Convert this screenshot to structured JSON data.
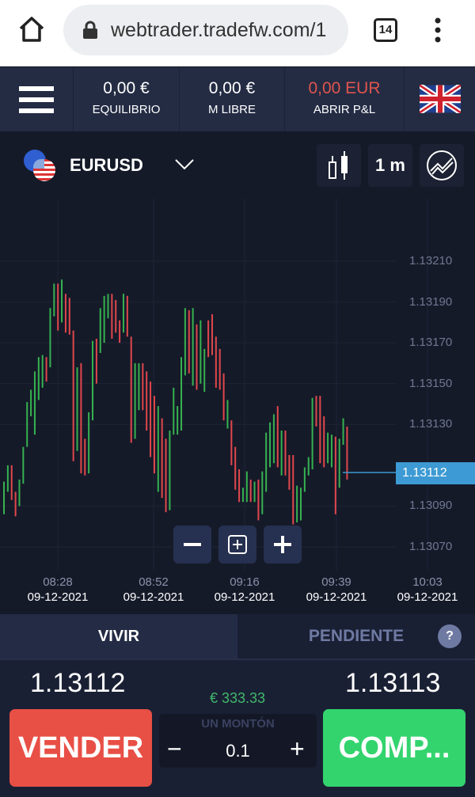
{
  "browser": {
    "url": "webtrader.tradefw.com/1",
    "tab_count": "14"
  },
  "header": {
    "balance": {
      "value": "0,00 €",
      "label": "EQUILIBRIO"
    },
    "free_margin": {
      "value": "0,00 €",
      "label": "M LIBRE"
    },
    "open_pl": {
      "value": "0,00 EUR",
      "label": "ABRIR P&L",
      "color": "#e0544d"
    },
    "language": "uk-flag-icon"
  },
  "toolbar": {
    "symbol": "EURUSD",
    "timeframe": "1 m"
  },
  "chart_data": {
    "type": "candlestick",
    "symbol": "EURUSD",
    "y_ticks": [
      "1.13210",
      "1.13190",
      "1.13170",
      "1.13150",
      "1.13130",
      "1.13090",
      "1.13070"
    ],
    "ylim": [
      1.13066,
      1.13214
    ],
    "x_ticks": [
      {
        "time": "08:28",
        "date": "09-12-2021"
      },
      {
        "time": "08:52",
        "date": "09-12-2021"
      },
      {
        "time": "09:16",
        "date": "09-12-2021"
      },
      {
        "time": "09:39",
        "date": "09-12-2021"
      },
      {
        "time": "10:03",
        "date": "09-12-2021"
      }
    ],
    "last_price": "1.13112",
    "colors": {
      "up": "#36b24f",
      "down": "#e0474c",
      "last_price": "#3d9ad4"
    },
    "candles_high_low_dir": [
      [
        1.13102,
        1.13086,
        "up"
      ],
      [
        1.1311,
        1.13097,
        "up"
      ],
      [
        1.1311,
        1.13093,
        "down"
      ],
      [
        1.13097,
        1.13085,
        "down"
      ],
      [
        1.13103,
        1.1309,
        "up"
      ],
      [
        1.13119,
        1.13101,
        "up"
      ],
      [
        1.13141,
        1.13119,
        "up"
      ],
      [
        1.13147,
        1.13134,
        "up"
      ],
      [
        1.13156,
        1.13125,
        "up"
      ],
      [
        1.13163,
        1.13142,
        "up"
      ],
      [
        1.13164,
        1.13148,
        "up"
      ],
      [
        1.13163,
        1.13151,
        "down"
      ],
      [
        1.13187,
        1.13158,
        "up"
      ],
      [
        1.13199,
        1.13183,
        "up"
      ],
      [
        1.13199,
        1.13176,
        "down"
      ],
      [
        1.13201,
        1.1318,
        "up"
      ],
      [
        1.13194,
        1.13175,
        "down"
      ],
      [
        1.13192,
        1.13174,
        "down"
      ],
      [
        1.13176,
        1.13112,
        "down"
      ],
      [
        1.13158,
        1.13117,
        "up"
      ],
      [
        1.1316,
        1.13106,
        "down"
      ],
      [
        1.13123,
        1.13105,
        "down"
      ],
      [
        1.13136,
        1.13106,
        "up"
      ],
      [
        1.13171,
        1.13132,
        "up"
      ],
      [
        1.13172,
        1.1315,
        "down"
      ],
      [
        1.13187,
        1.13165,
        "up"
      ],
      [
        1.13193,
        1.1317,
        "up"
      ],
      [
        1.13194,
        1.13182,
        "up"
      ],
      [
        1.13194,
        1.13172,
        "down"
      ],
      [
        1.13191,
        1.13175,
        "down"
      ],
      [
        1.13181,
        1.1317,
        "down"
      ],
      [
        1.13194,
        1.13175,
        "up"
      ],
      [
        1.13193,
        1.13173,
        "down"
      ],
      [
        1.13173,
        1.13121,
        "down"
      ],
      [
        1.1316,
        1.13123,
        "up"
      ],
      [
        1.1316,
        1.13137,
        "up"
      ],
      [
        1.1316,
        1.13137,
        "down"
      ],
      [
        1.13156,
        1.13127,
        "down"
      ],
      [
        1.13151,
        1.13114,
        "down"
      ],
      [
        1.13144,
        1.13106,
        "down"
      ],
      [
        1.13139,
        1.13097,
        "up"
      ],
      [
        1.13133,
        1.13094,
        "down"
      ],
      [
        1.13123,
        1.13087,
        "down"
      ],
      [
        1.13127,
        1.13088,
        "up"
      ],
      [
        1.13148,
        1.13125,
        "up"
      ],
      [
        1.13139,
        1.13125,
        "up"
      ],
      [
        1.13163,
        1.13127,
        "up"
      ],
      [
        1.13187,
        1.13154,
        "up"
      ],
      [
        1.13186,
        1.13155,
        "down"
      ],
      [
        1.13187,
        1.13149,
        "up"
      ],
      [
        1.13179,
        1.13147,
        "down"
      ],
      [
        1.13181,
        1.1315,
        "up"
      ],
      [
        1.13167,
        1.13146,
        "up"
      ],
      [
        1.13181,
        1.13163,
        "down"
      ],
      [
        1.13184,
        1.13164,
        "down"
      ],
      [
        1.13173,
        1.13148,
        "down"
      ],
      [
        1.13167,
        1.13147,
        "down"
      ],
      [
        1.13155,
        1.13132,
        "down"
      ],
      [
        1.13142,
        1.13128,
        "up"
      ],
      [
        1.13132,
        1.1311,
        "down"
      ],
      [
        1.13119,
        1.13098,
        "down"
      ],
      [
        1.13108,
        1.13092,
        "down"
      ],
      [
        1.13099,
        1.13092,
        "up"
      ],
      [
        1.13107,
        1.13092,
        "up"
      ],
      [
        1.13103,
        1.13092,
        "down"
      ],
      [
        1.13102,
        1.13092,
        "up"
      ],
      [
        1.13103,
        1.13083,
        "down"
      ],
      [
        1.13107,
        1.13086,
        "up"
      ],
      [
        1.13126,
        1.13097,
        "up"
      ],
      [
        1.13131,
        1.13109,
        "up"
      ],
      [
        1.13135,
        1.13111,
        "up"
      ],
      [
        1.13139,
        1.13109,
        "down"
      ],
      [
        1.13127,
        1.13105,
        "up"
      ],
      [
        1.13127,
        1.13105,
        "down"
      ],
      [
        1.13115,
        1.13098,
        "down"
      ],
      [
        1.13115,
        1.13081,
        "down"
      ],
      [
        1.131,
        1.13082,
        "up"
      ],
      [
        1.13099,
        1.13083,
        "up"
      ],
      [
        1.13109,
        1.13097,
        "up"
      ],
      [
        1.13114,
        1.13105,
        "up"
      ],
      [
        1.13143,
        1.13108,
        "up"
      ],
      [
        1.13144,
        1.13129,
        "down"
      ],
      [
        1.13144,
        1.13111,
        "down"
      ],
      [
        1.13134,
        1.13109,
        "down"
      ],
      [
        1.13126,
        1.13111,
        "up"
      ],
      [
        1.13125,
        1.13109,
        "up"
      ],
      [
        1.13124,
        1.13086,
        "down"
      ],
      [
        1.13123,
        1.13099,
        "up"
      ],
      [
        1.13133,
        1.1312,
        "up"
      ],
      [
        1.13129,
        1.13103,
        "down"
      ]
    ]
  },
  "tabs": [
    {
      "label": "VIVIR",
      "active": true
    },
    {
      "label": "PENDIENTE",
      "active": false
    }
  ],
  "help": "?",
  "trade": {
    "sell_price": "1.13112",
    "buy_price": "1.13113",
    "margin": "€ 333.33",
    "lot_label": "UN MONTÓN",
    "lot_value": "0.1",
    "minus": "−",
    "plus": "+",
    "sell_label": "VENDER",
    "buy_label": "COMP...",
    "sell_color": "#e84f45",
    "buy_color": "#33d46e"
  }
}
